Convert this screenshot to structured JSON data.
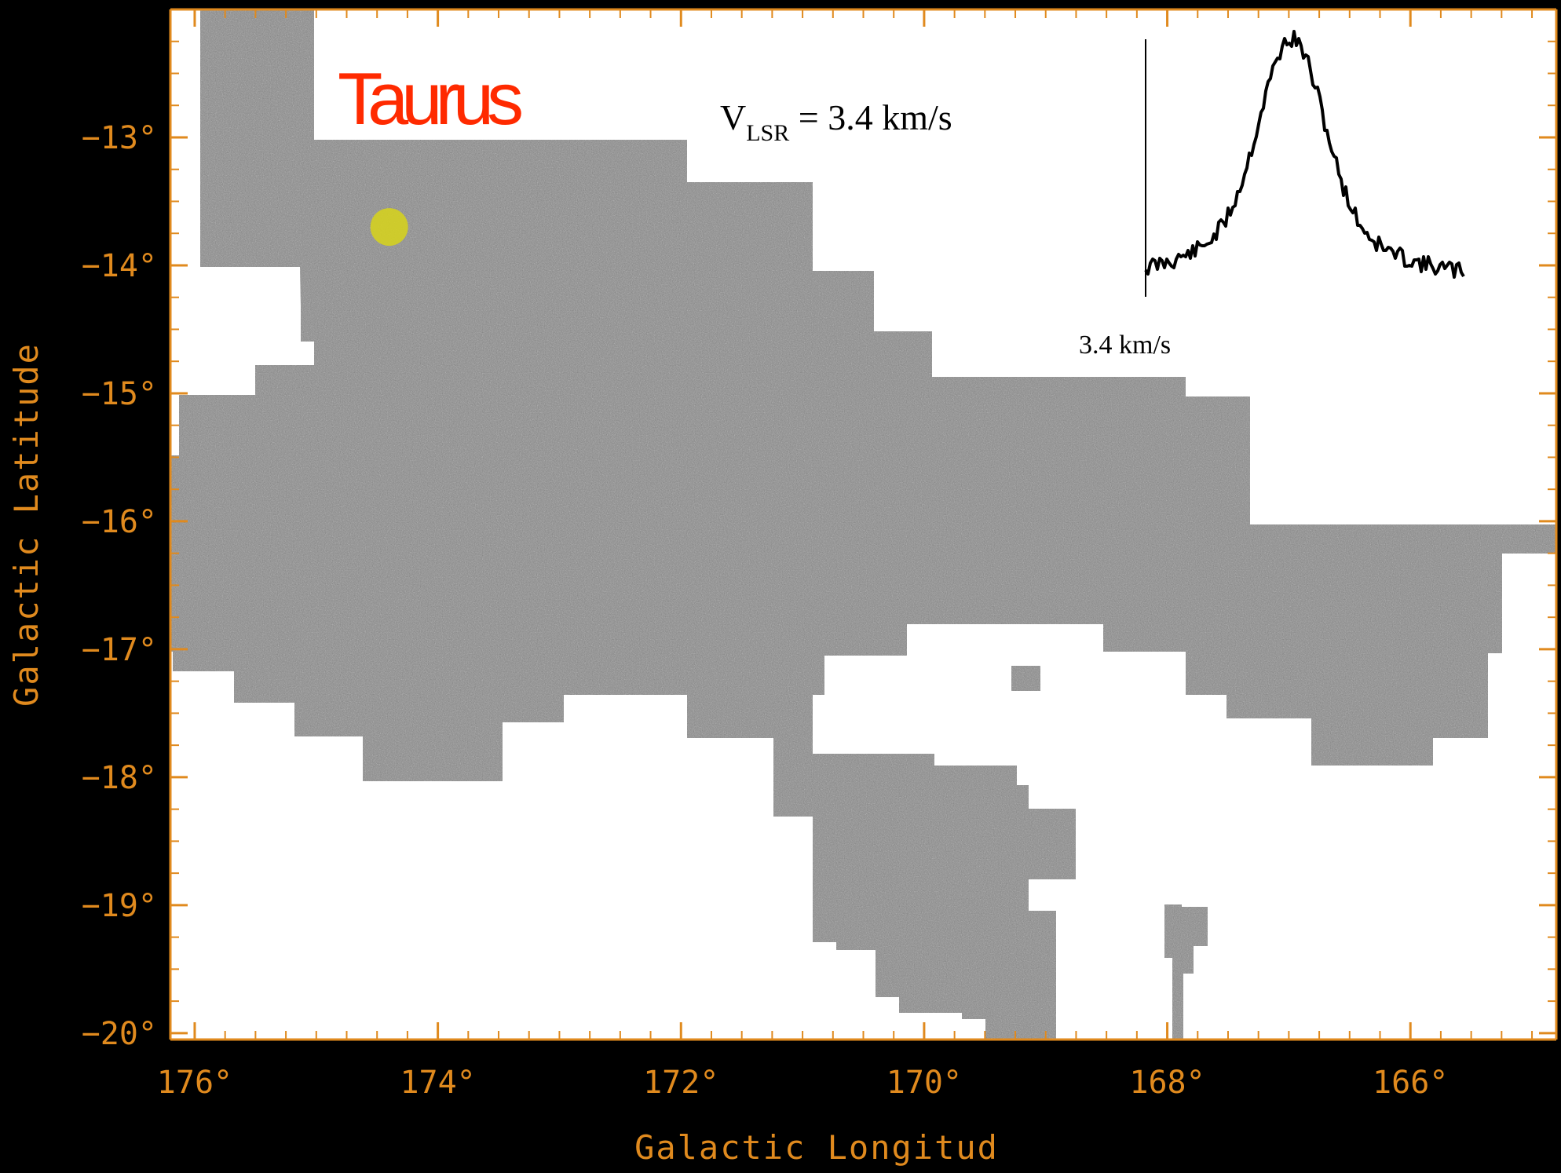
{
  "chart_data": {
    "type": "heatmap",
    "title": "Taurus",
    "annotation": {
      "velocity_label_main": "V",
      "velocity_label_sub": "LSR",
      "velocity_label_value": " = 3.4 km/s"
    },
    "xlabel": "Galactic Longitud",
    "ylabel": "Galactic Latitude",
    "xlim": [
      176.2,
      164.8
    ],
    "ylim": [
      -20.05,
      -12.0
    ],
    "x_ticks": [
      176,
      174,
      172,
      170,
      168,
      166
    ],
    "y_ticks": [
      -13,
      -14,
      -15,
      -16,
      -17,
      -18,
      -19,
      -20
    ],
    "x_tick_labels": [
      "176°",
      "174°",
      "172°",
      "170°",
      "168°",
      "166°"
    ],
    "y_tick_labels": [
      "−13°",
      "−14°",
      "−15°",
      "−16°",
      "−17°",
      "−18°",
      "−19°",
      "−20°"
    ],
    "grid": false,
    "map_color": "grayscale noise map on white background",
    "marker": {
      "l": 174.4,
      "b": -13.7,
      "color": "#d4d020",
      "shape": "circle"
    },
    "inset_spectrum": {
      "reference_label": "3.4 km/s",
      "description": "line profile with single peak"
    },
    "colors": {
      "axis": "#e08a1e",
      "title": "#ff2a00",
      "background": "#000000",
      "plot_background": "#ffffff",
      "map_gray": "#8c8c8c"
    }
  }
}
